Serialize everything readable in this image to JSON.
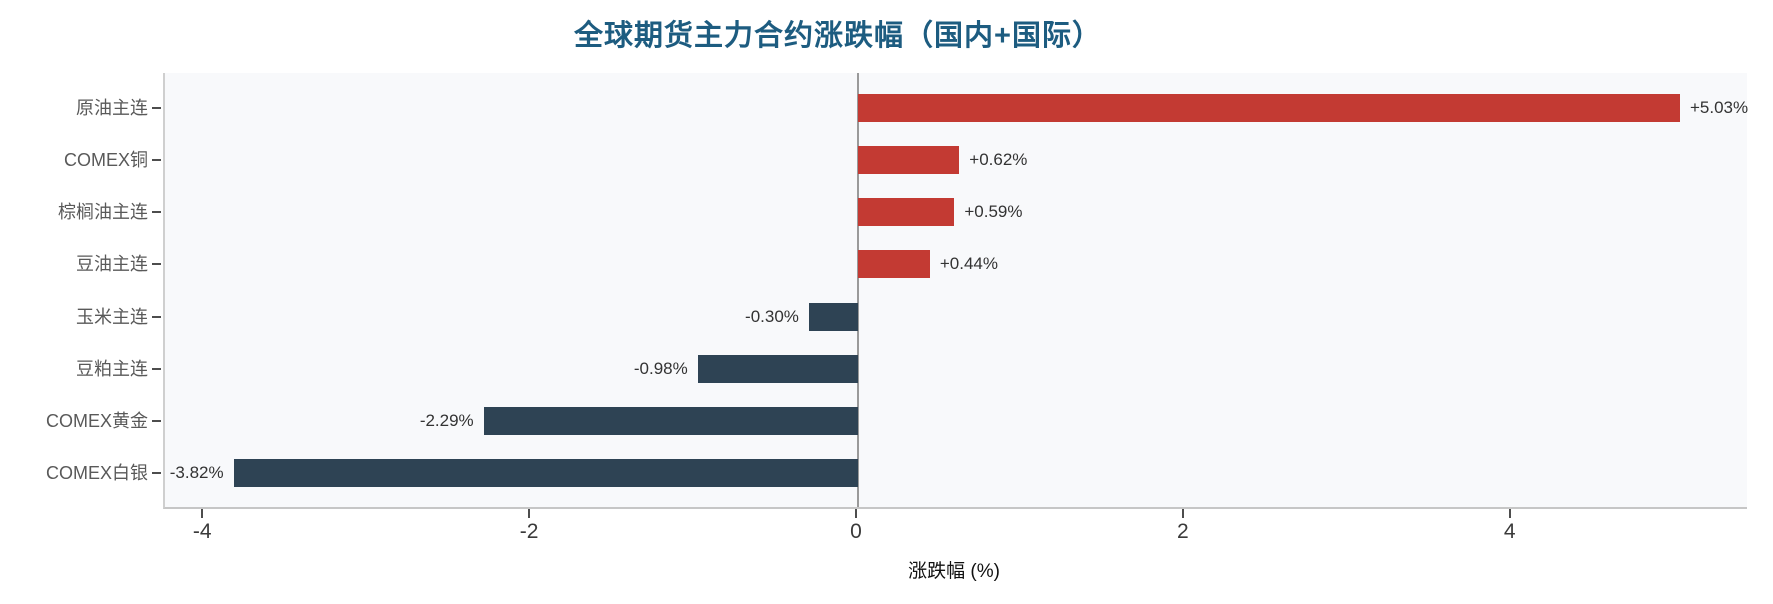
{
  "chart_data": {
    "type": "bar",
    "orientation": "horizontal",
    "title": "全球期货主力合约涨跌幅（国内+国际）",
    "xlabel": "涨跌幅 (%)",
    "categories": [
      "原油主连",
      "COMEX铜",
      "棕榈油主连",
      "豆油主连",
      "玉米主连",
      "豆粕主连",
      "COMEX黄金",
      "COMEX白银"
    ],
    "values": [
      5.03,
      0.62,
      0.59,
      0.44,
      -0.3,
      -0.98,
      -2.29,
      -3.82
    ],
    "value_labels": [
      "+5.03%",
      "+0.62%",
      "+0.59%",
      "+0.44%",
      "-0.30%",
      "-0.98%",
      "-2.29%",
      "-3.82%"
    ],
    "x_ticks": [
      -4,
      -2,
      0,
      2,
      4
    ],
    "x_tick_labels": [
      "-4",
      "-2",
      "0",
      "2",
      "4"
    ],
    "xlim": [
      -4.24,
      5.44
    ],
    "grid": false,
    "legend": false,
    "colors": {
      "positive_bar": "#c33a33",
      "negative_bar": "#2e4354",
      "title": "#1d5c80",
      "plot_background": "#f8f9fb",
      "figure_background": "#ffffff",
      "zero_line": "#9a9a9a",
      "axis_line": "#c6c6c6"
    }
  }
}
